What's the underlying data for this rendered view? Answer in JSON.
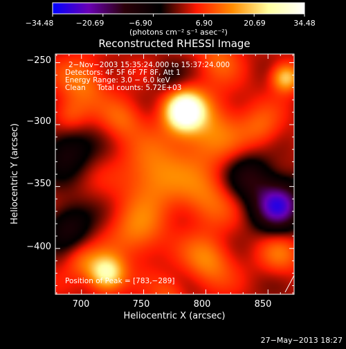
{
  "chart_data": {
    "type": "heatmap",
    "title": "Reconstructed RHESSI Image",
    "xlabel": "Heliocentric X (arcsec)",
    "ylabel": "Heliocentric Y (arcsec)",
    "xlim": [
      679,
      871
    ],
    "ylim": [
      -437,
      -243
    ],
    "x_ticks": [
      700,
      750,
      800,
      850
    ],
    "x_tick_labels": [
      "700",
      "750",
      "800",
      "850"
    ],
    "y_ticks": [
      -250,
      -300,
      -350,
      -400
    ],
    "y_tick_labels": [
      "−250",
      "−300",
      "−350",
      "−400"
    ],
    "colorbar": {
      "min": -34.48,
      "max": 34.48,
      "ticks": [
        -34.48,
        -20.69,
        -6.9,
        6.9,
        20.69,
        34.48
      ],
      "tick_labels": [
        "−34.48",
        "−20.69",
        "−6.90",
        "6.90",
        "20.69",
        "34.48"
      ],
      "unit_label": "(photons cm⁻² s⁻¹ asec⁻²)",
      "colors": [
        "#0000ff",
        "#6a00b5",
        "#2a0008",
        "#000000",
        "#ff1800",
        "#ff8c00",
        "#ffffa0",
        "#ffffff"
      ]
    },
    "annotation_lines": [
      "2−Nov−2003 15:35:24.000 to 15:37:24.000",
      "Detectors: 4F 5F 6F 7F 8F, Att 1",
      "Energy Range: 3.0 − 6.0 keV",
      "Clean     Total counts: 5.72E+03"
    ],
    "peak_label": "Position of Peak = [783,−289]",
    "peak_position": [
      783,
      -289
    ],
    "sources": [
      {
        "x": 783,
        "y": -289,
        "amp": 34,
        "sigma": 10
      },
      {
        "x": 720,
        "y": -420,
        "amp": 26,
        "sigma": 10
      },
      {
        "x": 864,
        "y": -262,
        "amp": 20,
        "sigma": 8
      },
      {
        "x": 797,
        "y": -303,
        "amp": 13,
        "sigma": 22
      },
      {
        "x": 757,
        "y": -342,
        "amp": 13,
        "sigma": 18
      },
      {
        "x": 701,
        "y": -265,
        "amp": 11,
        "sigma": 14
      },
      {
        "x": 690,
        "y": -292,
        "amp": 8,
        "sigma": 10
      },
      {
        "x": 745,
        "y": -388,
        "amp": 11,
        "sigma": 16
      },
      {
        "x": 800,
        "y": -360,
        "amp": 10,
        "sigma": 16
      },
      {
        "x": 802,
        "y": -410,
        "amp": 12,
        "sigma": 14
      },
      {
        "x": 733,
        "y": -295,
        "amp": 9,
        "sigma": 12
      },
      {
        "x": 845,
        "y": -303,
        "amp": 8,
        "sigma": 12
      },
      {
        "x": 810,
        "y": -245,
        "amp": 8,
        "sigma": 12
      },
      {
        "x": 860,
        "y": -405,
        "amp": 9,
        "sigma": 12
      },
      {
        "x": 700,
        "y": -410,
        "amp": 8,
        "sigma": 10
      },
      {
        "x": 770,
        "y": -437,
        "amp": 7,
        "sigma": 10
      },
      {
        "x": 858,
        "y": -365,
        "amp": -30,
        "sigma": 14
      },
      {
        "x": 835,
        "y": -342,
        "amp": -14,
        "sigma": 13
      },
      {
        "x": 688,
        "y": -322,
        "amp": -13,
        "sigma": 14
      },
      {
        "x": 690,
        "y": -382,
        "amp": -13,
        "sigma": 13
      },
      {
        "x": 770,
        "y": -262,
        "amp": -6,
        "sigma": 10
      }
    ]
  },
  "footer": {
    "timestamp": "27−May−2013 18:27"
  }
}
